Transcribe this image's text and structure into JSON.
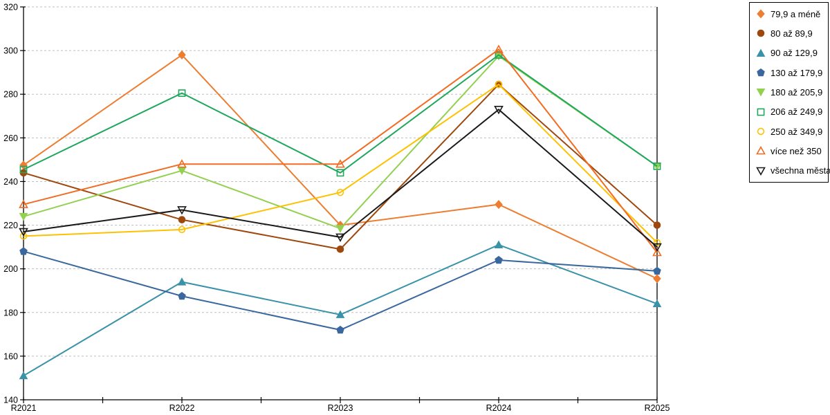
{
  "chart_data": {
    "type": "line",
    "x_categories": [
      "R2021",
      "R2022",
      "R2023",
      "R2024",
      "R2025"
    ],
    "y_axis": {
      "min": 140,
      "max": 320,
      "step": 20
    },
    "grid": true,
    "legend_position": "right",
    "axis_color": "#000000",
    "gridline_color": "#bfbfbf",
    "series": [
      {
        "name": "79,9 a méně",
        "color": "#ED7D31",
        "marker": "diamond",
        "marker_fill": "solid",
        "values": [
          247.5,
          298,
          220,
          229.5,
          195.5
        ]
      },
      {
        "name": "80 až 89,9",
        "color": "#9E480E",
        "marker": "circle",
        "marker_fill": "solid",
        "values": [
          244,
          222.5,
          209,
          284.5,
          220
        ]
      },
      {
        "name": "90 až 129,9",
        "color": "#3A92A9",
        "marker": "triangle-up",
        "marker_fill": "solid",
        "values": [
          151,
          194,
          179,
          211,
          184
        ]
      },
      {
        "name": "130 až 179,9",
        "color": "#3A689E",
        "marker": "pentagon",
        "marker_fill": "solid",
        "values": [
          208,
          187.5,
          172,
          204,
          199
        ]
      },
      {
        "name": "180 až 205,9",
        "color": "#92D050",
        "marker": "triangle-down",
        "marker_fill": "solid",
        "values": [
          224,
          245,
          218.5,
          297.5,
          247
        ]
      },
      {
        "name": "206 až 249,9",
        "color": "#1FA75D",
        "marker": "square",
        "marker_fill": "open",
        "values": [
          245.5,
          280.5,
          244,
          298,
          247
        ]
      },
      {
        "name": "250 až 349,9",
        "color": "#FFC000",
        "marker": "circle",
        "marker_fill": "open",
        "values": [
          215,
          218,
          235,
          284.5,
          212
        ]
      },
      {
        "name": "více než 350",
        "color": "#F26B21",
        "marker": "triangle-up",
        "marker_fill": "open",
        "values": [
          229.5,
          248,
          248,
          300.5,
          207.5
        ]
      },
      {
        "name": "všechna města",
        "color": "#1A1A1A",
        "marker": "triangle-down",
        "marker_fill": "open",
        "values": [
          217,
          227,
          214.5,
          273,
          210
        ]
      }
    ]
  }
}
